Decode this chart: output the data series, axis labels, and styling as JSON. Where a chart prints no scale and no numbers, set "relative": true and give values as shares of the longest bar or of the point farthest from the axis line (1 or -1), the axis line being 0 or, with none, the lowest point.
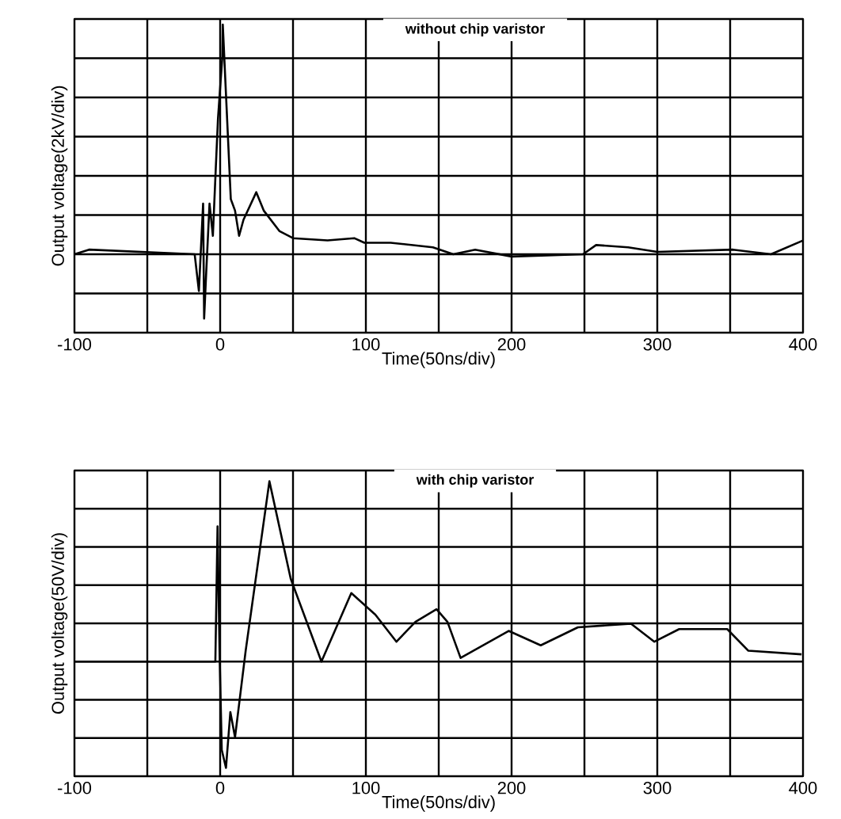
{
  "chart_data": [
    {
      "type": "line",
      "title": "without chip varistor",
      "xlabel": "Time(50ns/div)",
      "ylabel": "Output voltage(2kV/div)",
      "relative": true,
      "grid": true,
      "xlim": [
        -100,
        400
      ],
      "xticks": [
        -100,
        {
          "value": -50,
          "label": null
        },
        0,
        {
          "value": 50,
          "label": null
        },
        100,
        {
          "value": 150,
          "label": null
        },
        200,
        {
          "value": 250,
          "label": null
        },
        300,
        {
          "value": 350,
          "label": null
        },
        400
      ],
      "x": [
        -100,
        -90,
        -17.5,
        -14.6,
        -11.7,
        -11,
        -9.5,
        -7.3,
        -5,
        -2.9,
        -1.5,
        1.5,
        1.8,
        4.4,
        7.3,
        10.2,
        13,
        16,
        24.8,
        29.9,
        40.8,
        50,
        73.7,
        92,
        99,
        117,
        146,
        160,
        175,
        200,
        249,
        258,
        280,
        300,
        352,
        378,
        400
      ],
      "series": [
        {
          "color": "#000000",
          "values": [
            0,
            0.02,
            0,
            -0.16,
            0.22,
            -0.28,
            -0.07,
            0.22,
            0.08,
            0.39,
            0.59,
            0.86,
            1,
            0.64,
            0.24,
            0.19,
            0.08,
            0.15,
            0.27,
            0.19,
            0.1,
            0.07,
            0.06,
            0.07,
            0.05,
            0.05,
            0.03,
            0,
            0.02,
            -0.01,
            0,
            0.04,
            0.03,
            0.01,
            0.02,
            0,
            0.06
          ]
        }
      ]
    },
    {
      "type": "line",
      "title": "with chip varistor",
      "xlabel": "Time(50ns/div)",
      "ylabel": "Output voltage(50V/div)",
      "relative": true,
      "grid": true,
      "xlim": [
        -100,
        400
      ],
      "xticks": [
        -100,
        {
          "value": -50,
          "label": null
        },
        0,
        {
          "value": 50,
          "label": null
        },
        100,
        {
          "value": 150,
          "label": null
        },
        200,
        {
          "value": 250,
          "label": null
        },
        300,
        {
          "value": 350,
          "label": null
        },
        400
      ],
      "x": [
        -100,
        -3.3,
        -1.8,
        -0.4,
        1.1,
        4,
        7,
        10.2,
        17.5,
        33.8,
        48.4,
        69.5,
        90,
        106.5,
        121,
        134,
        148.5,
        156,
        165,
        198,
        220,
        245.5,
        282,
        298,
        315,
        348,
        362.5,
        399
      ],
      "series": [
        {
          "color": "#000000",
          "values": [
            0,
            0,
            0.75,
            0.05,
            -0.49,
            -0.59,
            -0.28,
            -0.42,
            0.06,
            1,
            0.46,
            0,
            0.38,
            0.26,
            0.11,
            0.22,
            0.29,
            0.22,
            0.02,
            0.17,
            0.09,
            0.19,
            0.21,
            0.11,
            0.18,
            0.18,
            0.06,
            0.04
          ]
        }
      ]
    }
  ]
}
